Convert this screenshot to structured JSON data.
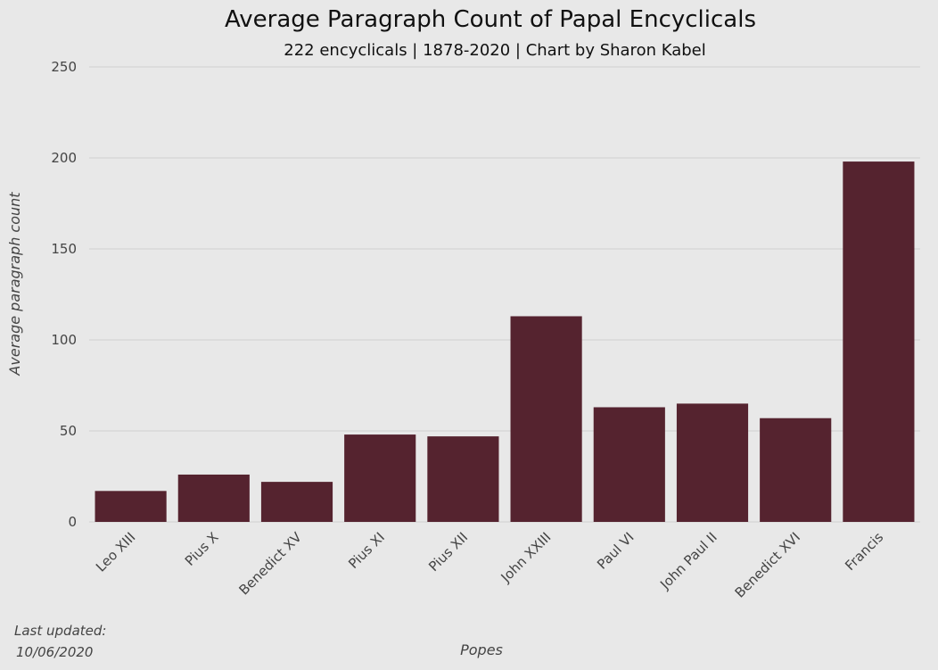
{
  "chart_data": {
    "type": "bar",
    "title": "Average Paragraph Count of Papal Encyclicals",
    "subtitle": "222 encyclicals | 1878-2020 | Chart by Sharon Kabel",
    "xlabel": "Popes",
    "ylabel": "Average paragraph count",
    "categories": [
      "Leo XIII",
      "Pius X",
      "Benedict XV",
      "Pius XI",
      "Pius XII",
      "John XXIII",
      "Paul VI",
      "John Paul II",
      "Benedict XVI",
      "Francis"
    ],
    "values": [
      17,
      26,
      22,
      48,
      47,
      113,
      63,
      65,
      57,
      198
    ],
    "ylim": [
      0,
      250
    ],
    "yticks": [
      0,
      50,
      100,
      150,
      200,
      250
    ],
    "grid": true,
    "bar_color": "#55232f"
  },
  "footnote": {
    "line1": "Last updated:",
    "line2": "10/06/2020"
  }
}
